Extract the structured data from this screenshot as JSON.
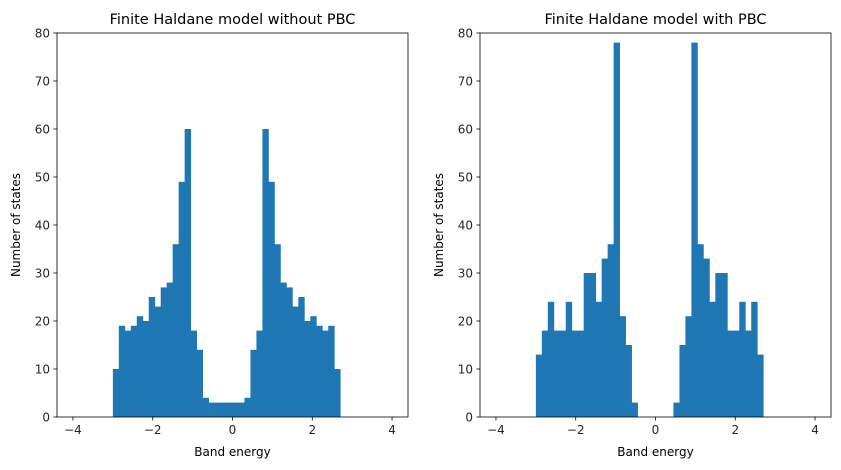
{
  "chart_data": [
    {
      "type": "bar",
      "title": "Finite Haldane model without PBC",
      "xlabel": "Band energy",
      "ylabel": "Number of states",
      "xlim": [
        -4.4,
        4.4
      ],
      "ylim": [
        0,
        80
      ],
      "xticks": [
        -4,
        -2,
        0,
        2,
        4
      ],
      "yticks": [
        0,
        10,
        20,
        30,
        40,
        50,
        60,
        70,
        80
      ],
      "xtick_labels": [
        "−4",
        "−2",
        "0",
        "2",
        "4"
      ],
      "ytick_labels": [
        "0",
        "10",
        "20",
        "30",
        "40",
        "50",
        "60",
        "70",
        "80"
      ],
      "bar_color": "#1f77b4",
      "bin_edges_start": -3.0,
      "bin_width": 0.15,
      "counts": [
        10,
        19,
        18,
        19,
        21,
        20,
        25,
        23,
        27,
        28,
        36,
        49,
        60,
        18,
        14,
        4,
        3,
        3,
        3,
        3,
        3,
        3,
        4,
        14,
        18,
        60,
        49,
        36,
        28,
        27,
        23,
        25,
        20,
        21,
        19,
        18,
        19,
        10
      ],
      "grid": false
    },
    {
      "type": "bar",
      "title": "Finite Haldane model with PBC",
      "xlabel": "Band energy",
      "ylabel": "Number of states",
      "xlim": [
        -4.4,
        4.4
      ],
      "ylim": [
        0,
        80
      ],
      "xticks": [
        -4,
        -2,
        0,
        2,
        4
      ],
      "yticks": [
        0,
        10,
        20,
        30,
        40,
        50,
        60,
        70,
        80
      ],
      "xtick_labels": [
        "−4",
        "−2",
        "0",
        "2",
        "4"
      ],
      "ytick_labels": [
        "0",
        "10",
        "20",
        "30",
        "40",
        "50",
        "60",
        "70",
        "80"
      ],
      "bar_color": "#1f77b4",
      "bin_edges_start": -3.0,
      "bin_width": 0.15,
      "counts": [
        13,
        18,
        24,
        18,
        18,
        24,
        18,
        18,
        30,
        30,
        24,
        33,
        36,
        78,
        21,
        15,
        3,
        0,
        0,
        0,
        0,
        0,
        0,
        3,
        15,
        21,
        78,
        36,
        33,
        24,
        30,
        30,
        18,
        18,
        24,
        18,
        24,
        13
      ],
      "grid": false
    }
  ]
}
